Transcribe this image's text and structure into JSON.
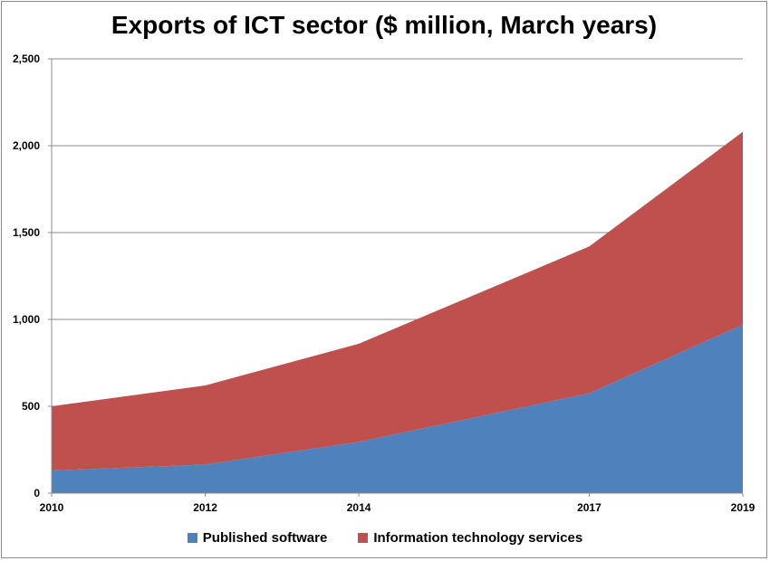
{
  "chart_data": {
    "type": "area",
    "stacked": true,
    "title": "Exports of ICT sector ($ million, March years)",
    "x": [
      "2010",
      "2012",
      "2014",
      "2017",
      "2019"
    ],
    "x_positions": [
      2010,
      2012,
      2014,
      2017,
      2019
    ],
    "ylim": [
      0,
      2500
    ],
    "yticks": [
      0,
      500,
      1000,
      1500,
      2000,
      2500
    ],
    "ytick_labels": [
      "0",
      "500",
      "1,000",
      "1,500",
      "2,000",
      "2,500"
    ],
    "grid": true,
    "legend_position": "bottom",
    "series": [
      {
        "name": "Published software",
        "color": "#4f81bd",
        "values": [
          130,
          165,
          295,
          575,
          970
        ]
      },
      {
        "name": "Information technology services",
        "color": "#c0504d",
        "values": [
          370,
          455,
          565,
          845,
          1110
        ]
      }
    ]
  }
}
